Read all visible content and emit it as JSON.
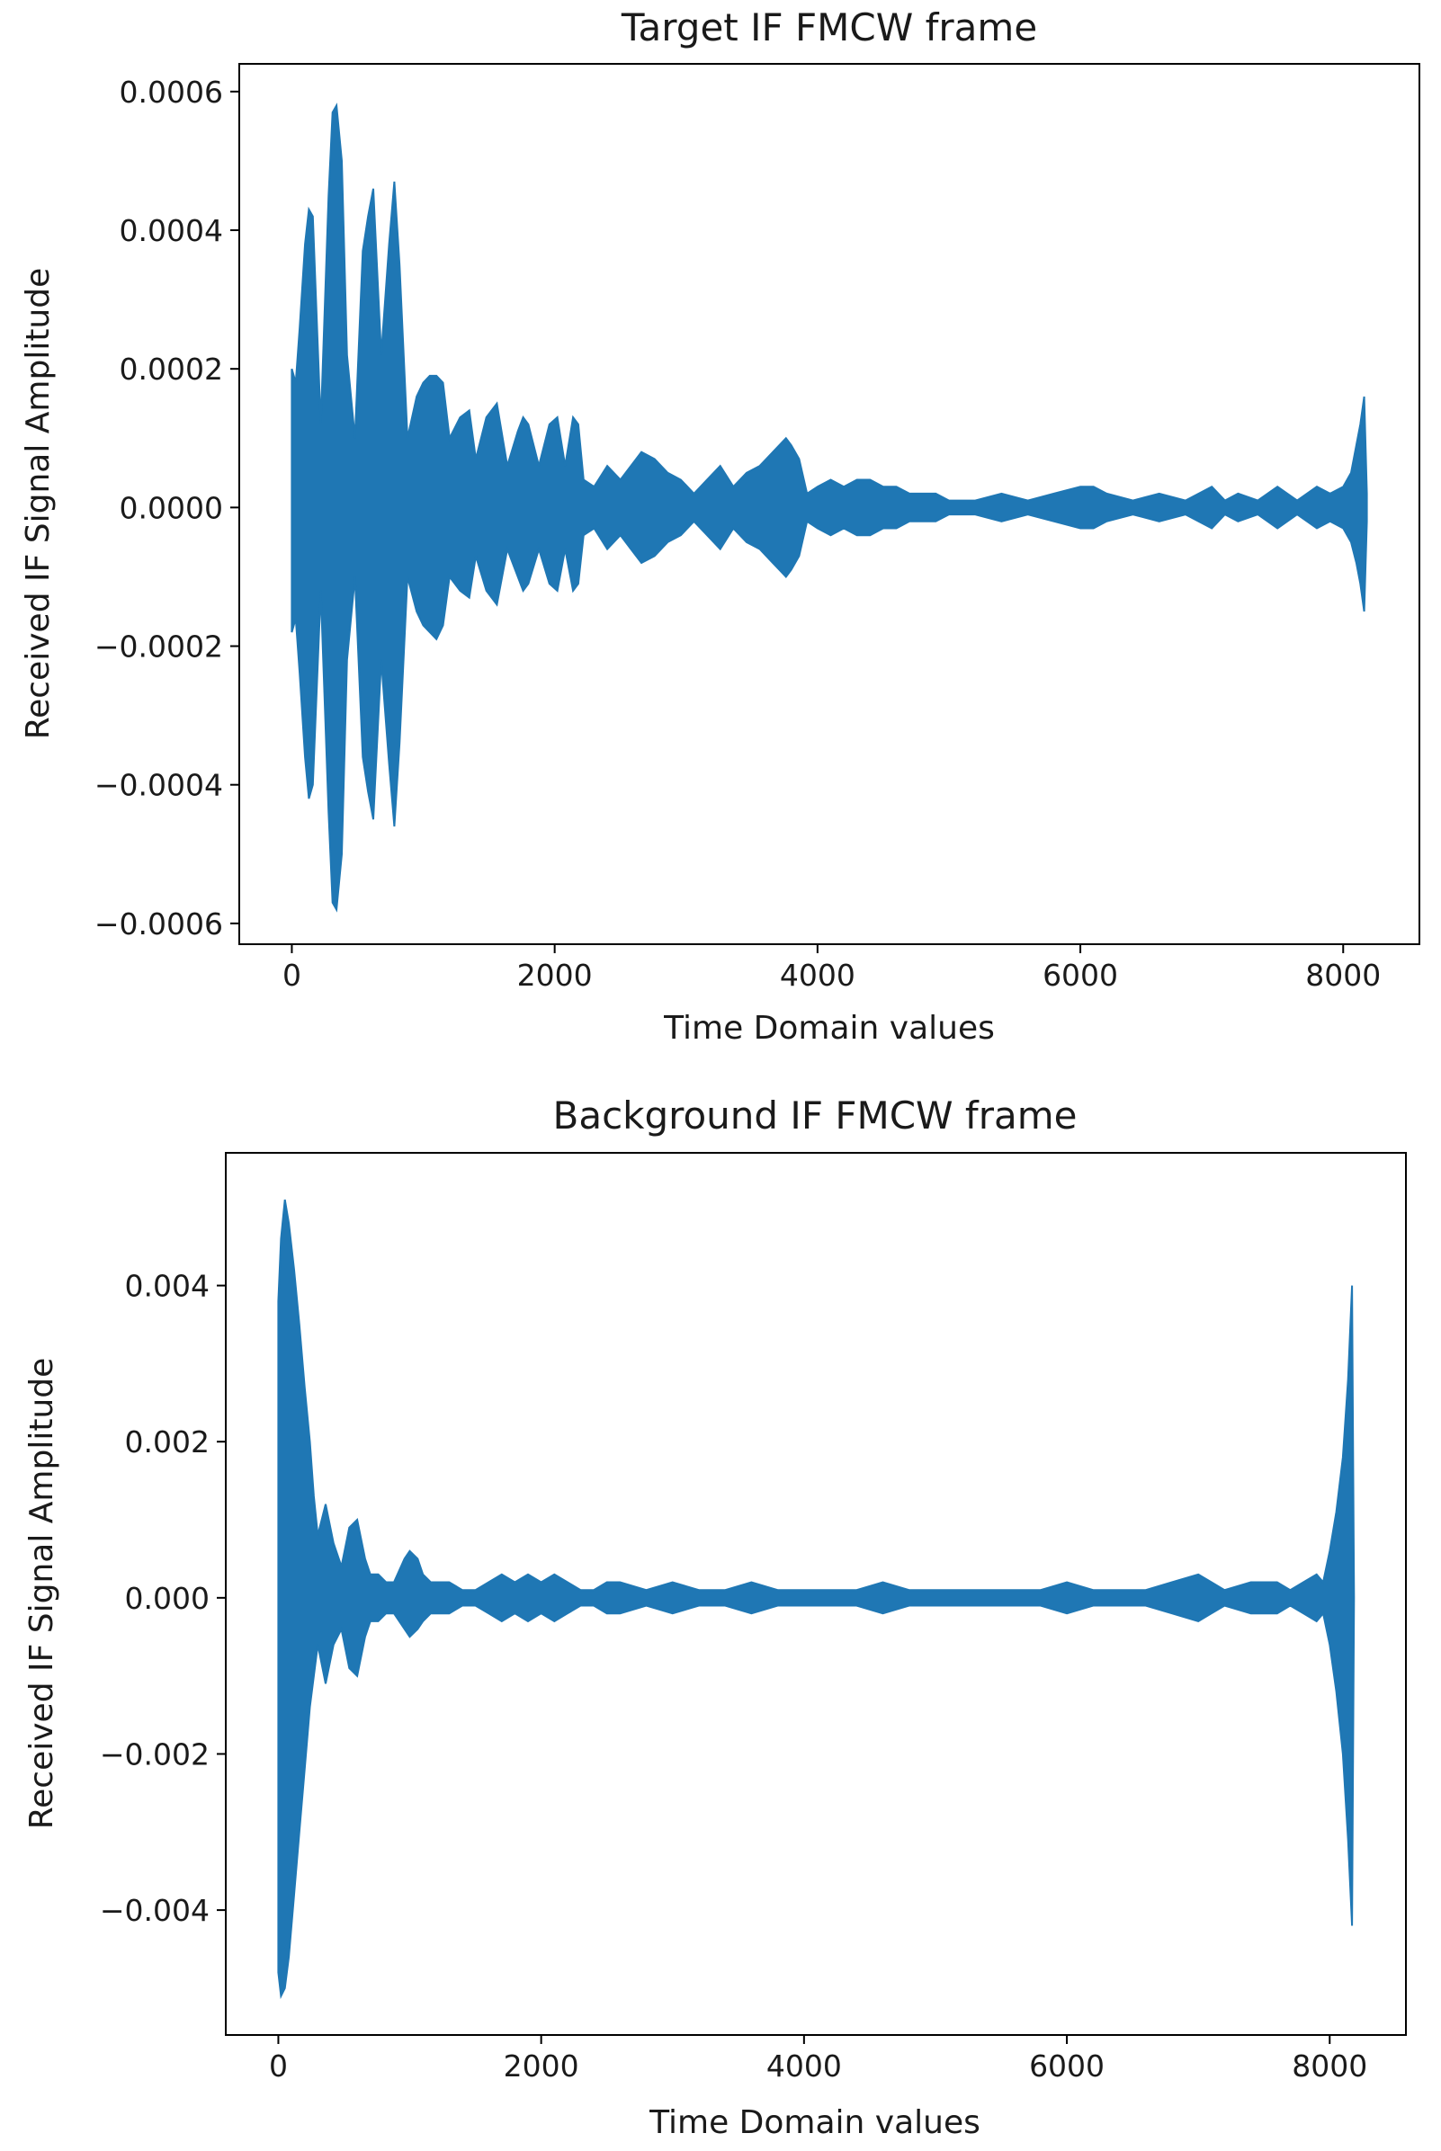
{
  "chart_data": [
    {
      "type": "line",
      "title": "Target IF FMCW frame",
      "xlabel": "Time Domain values",
      "ylabel": "Received IF Signal Amplitude",
      "xlim": [
        -400,
        8580
      ],
      "ylim": [
        -0.00063,
        0.00064
      ],
      "x_ticks": [
        0,
        2000,
        4000,
        6000,
        8000
      ],
      "x_tick_labels": [
        "0",
        "2000",
        "4000",
        "6000",
        "8000"
      ],
      "y_ticks": [
        0.0006,
        0.0004,
        0.0002,
        0.0,
        -0.0002,
        -0.0004,
        -0.0006
      ],
      "y_tick_labels": [
        "0.0006",
        "0.0004",
        "0.0002",
        "0.0000",
        "−0.0002",
        "−0.0004",
        "−0.0006"
      ],
      "grid": false,
      "series": [
        {
          "color": "#1f77b4",
          "envelope_x": [
            0,
            30,
            60,
            100,
            130,
            160,
            220,
            280,
            310,
            340,
            380,
            420,
            480,
            540,
            580,
            620,
            680,
            740,
            780,
            820,
            880,
            950,
            1000,
            1050,
            1100,
            1150,
            1200,
            1280,
            1350,
            1400,
            1480,
            1560,
            1640,
            1720,
            1760,
            1800,
            1880,
            1960,
            2020,
            2080,
            2140,
            2180,
            2220,
            2300,
            2400,
            2500,
            2580,
            2660,
            2760,
            2860,
            2960,
            3060,
            3160,
            3260,
            3360,
            3460,
            3560,
            3660,
            3760,
            3800,
            3860,
            3920,
            4000,
            4100,
            4200,
            4300,
            4400,
            4500,
            4600,
            4700,
            4800,
            4900,
            5000,
            5200,
            5400,
            5600,
            5800,
            6000,
            6100,
            6200,
            6400,
            6600,
            6800,
            7000,
            7100,
            7200,
            7350,
            7500,
            7650,
            7800,
            7900,
            8000,
            8060,
            8100,
            8130,
            8160,
            8180
          ],
          "envelope_upper": [
            0.0002,
            0.00018,
            0.00026,
            0.00038,
            0.00043,
            0.00042,
            0.00012,
            0.00045,
            0.00057,
            0.00058,
            0.0005,
            0.00022,
            0.0001,
            0.00037,
            0.00042,
            0.00046,
            0.00022,
            0.00038,
            0.00047,
            0.00035,
            0.0001,
            0.00016,
            0.00018,
            0.00019,
            0.00019,
            0.00018,
            0.0001,
            0.00013,
            0.00014,
            7e-05,
            0.00013,
            0.00015,
            6e-05,
            0.00011,
            0.00013,
            0.00012,
            6e-05,
            0.00012,
            0.00013,
            6e-05,
            0.00013,
            0.00012,
            4e-05,
            3e-05,
            6e-05,
            4e-05,
            6e-05,
            8e-05,
            7e-05,
            5e-05,
            4e-05,
            2e-05,
            4e-05,
            6e-05,
            3e-05,
            5e-05,
            6e-05,
            8e-05,
            0.0001,
            9e-05,
            7e-05,
            2e-05,
            3e-05,
            4e-05,
            3e-05,
            4e-05,
            4e-05,
            3e-05,
            3e-05,
            2e-05,
            2e-05,
            2e-05,
            1e-05,
            1e-05,
            2e-05,
            1e-05,
            2e-05,
            3e-05,
            3e-05,
            2e-05,
            1e-05,
            2e-05,
            1e-05,
            3e-05,
            1e-05,
            2e-05,
            1e-05,
            3e-05,
            1e-05,
            3e-05,
            2e-05,
            3e-05,
            5e-05,
            9e-05,
            0.00012,
            0.00016,
            2e-05
          ],
          "envelope_lower": [
            -0.00018,
            -0.00016,
            -0.00024,
            -0.00036,
            -0.00042,
            -0.0004,
            -0.00012,
            -0.00044,
            -0.00057,
            -0.00058,
            -0.0005,
            -0.00022,
            -0.0001,
            -0.00036,
            -0.00041,
            -0.00045,
            -0.00022,
            -0.00037,
            -0.00046,
            -0.00034,
            -0.0001,
            -0.00015,
            -0.00017,
            -0.00018,
            -0.00019,
            -0.00017,
            -0.0001,
            -0.00012,
            -0.00013,
            -7e-05,
            -0.00012,
            -0.00014,
            -6e-05,
            -0.0001,
            -0.00012,
            -0.00011,
            -6e-05,
            -0.00011,
            -0.00012,
            -6e-05,
            -0.00012,
            -0.00011,
            -4e-05,
            -3e-05,
            -6e-05,
            -4e-05,
            -6e-05,
            -8e-05,
            -7e-05,
            -5e-05,
            -4e-05,
            -2e-05,
            -4e-05,
            -6e-05,
            -3e-05,
            -5e-05,
            -6e-05,
            -8e-05,
            -0.0001,
            -9e-05,
            -7e-05,
            -2e-05,
            -3e-05,
            -4e-05,
            -3e-05,
            -4e-05,
            -4e-05,
            -3e-05,
            -3e-05,
            -2e-05,
            -2e-05,
            -2e-05,
            -1e-05,
            -1e-05,
            -2e-05,
            -1e-05,
            -2e-05,
            -3e-05,
            -3e-05,
            -2e-05,
            -1e-05,
            -2e-05,
            -1e-05,
            -3e-05,
            -1e-05,
            -2e-05,
            -1e-05,
            -3e-05,
            -1e-05,
            -3e-05,
            -2e-05,
            -3e-05,
            -5e-05,
            -8e-05,
            -0.00011,
            -0.00015,
            -2e-05
          ]
        }
      ]
    },
    {
      "type": "line",
      "title": "Background IF FMCW frame",
      "xlabel": "Time Domain values",
      "ylabel": "Received IF Signal Amplitude",
      "xlim": [
        -400,
        8580
      ],
      "ylim": [
        -0.0056,
        0.0057
      ],
      "x_ticks": [
        0,
        2000,
        4000,
        6000,
        8000
      ],
      "x_tick_labels": [
        "0",
        "2000",
        "4000",
        "6000",
        "8000"
      ],
      "y_ticks": [
        0.004,
        0.002,
        0.0,
        -0.002,
        -0.004
      ],
      "y_tick_labels": [
        "0.004",
        "0.002",
        "0.000",
        "−0.002",
        "−0.004"
      ],
      "grid": false,
      "series": [
        {
          "color": "#1f77b4",
          "envelope_x": [
            0,
            20,
            50,
            80,
            120,
            160,
            200,
            240,
            270,
            300,
            360,
            420,
            480,
            540,
            600,
            660,
            700,
            760,
            820,
            880,
            960,
            1000,
            1060,
            1100,
            1160,
            1200,
            1300,
            1400,
            1500,
            1600,
            1700,
            1800,
            1900,
            2000,
            2100,
            2200,
            2300,
            2400,
            2500,
            2600,
            2800,
            3000,
            3200,
            3400,
            3600,
            3800,
            4000,
            4200,
            4400,
            4600,
            4800,
            5000,
            5200,
            5400,
            5600,
            5800,
            6000,
            6200,
            6400,
            6600,
            6800,
            7000,
            7100,
            7200,
            7400,
            7600,
            7700,
            7800,
            7900,
            7950,
            8000,
            8050,
            8100,
            8140,
            8170,
            8185
          ],
          "envelope_upper": [
            0.0038,
            0.0046,
            0.0051,
            0.0048,
            0.0042,
            0.0035,
            0.0027,
            0.002,
            0.0013,
            0.0008,
            0.0012,
            0.0007,
            0.0004,
            0.0009,
            0.001,
            0.0005,
            0.0003,
            0.0003,
            0.0002,
            0.0002,
            0.0005,
            0.0006,
            0.0005,
            0.0003,
            0.0002,
            0.0002,
            0.0002,
            0.0001,
            0.0001,
            0.0002,
            0.0003,
            0.0002,
            0.0003,
            0.0002,
            0.0003,
            0.0002,
            0.0001,
            0.0001,
            0.0002,
            0.0002,
            0.0001,
            0.0002,
            0.0001,
            0.0001,
            0.0002,
            0.0001,
            0.0001,
            0.0001,
            0.0001,
            0.0002,
            0.0001,
            0.0001,
            0.0001,
            0.0001,
            0.0001,
            0.0001,
            0.0002,
            0.0001,
            0.0001,
            0.0001,
            0.0002,
            0.0003,
            0.0002,
            0.0001,
            0.0002,
            0.0002,
            0.0001,
            0.0002,
            0.0003,
            0.0002,
            0.0006,
            0.0011,
            0.0018,
            0.0028,
            0.004,
            0.0
          ],
          "envelope_lower": [
            -0.0048,
            -0.0051,
            -0.005,
            -0.0046,
            -0.0038,
            -0.003,
            -0.0022,
            -0.0014,
            -0.001,
            -0.0006,
            -0.0011,
            -0.0006,
            -0.0004,
            -0.0009,
            -0.001,
            -0.0005,
            -0.0003,
            -0.0003,
            -0.0002,
            -0.0002,
            -0.0004,
            -0.0005,
            -0.0004,
            -0.0003,
            -0.0002,
            -0.0002,
            -0.0002,
            -0.0001,
            -0.0001,
            -0.0002,
            -0.0003,
            -0.0002,
            -0.0003,
            -0.0002,
            -0.0003,
            -0.0002,
            -0.0001,
            -0.0001,
            -0.0002,
            -0.0002,
            -0.0001,
            -0.0002,
            -0.0001,
            -0.0001,
            -0.0002,
            -0.0001,
            -0.0001,
            -0.0001,
            -0.0001,
            -0.0002,
            -0.0001,
            -0.0001,
            -0.0001,
            -0.0001,
            -0.0001,
            -0.0001,
            -0.0002,
            -0.0001,
            -0.0001,
            -0.0001,
            -0.0002,
            -0.0003,
            -0.0002,
            -0.0001,
            -0.0002,
            -0.0002,
            -0.0001,
            -0.0002,
            -0.0003,
            -0.0002,
            -0.0006,
            -0.0012,
            -0.002,
            -0.0031,
            -0.0042,
            0.0
          ]
        }
      ]
    }
  ]
}
